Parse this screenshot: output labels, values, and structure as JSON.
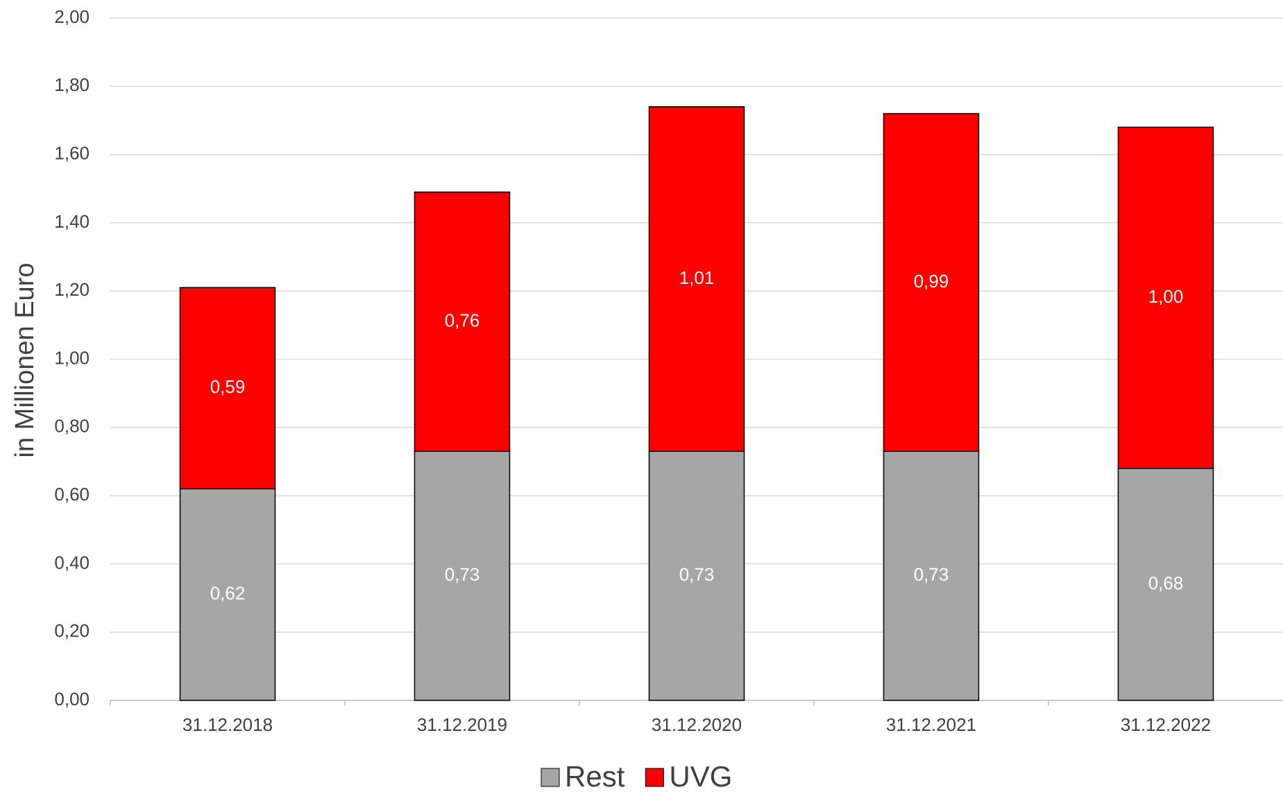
{
  "chart_data": {
    "type": "stacked_bar",
    "y_label": "in Millionen Euro",
    "categories": [
      "31.12.2018",
      "31.12.2019",
      "31.12.2020",
      "31.12.2021",
      "31.12.2022"
    ],
    "series": [
      {
        "name": "Rest",
        "color": "#a6a6a6",
        "values": [
          0.62,
          0.73,
          0.73,
          0.73,
          0.68
        ],
        "value_labels": [
          "0,62",
          "0,73",
          "0,73",
          "0,73",
          "0,68"
        ]
      },
      {
        "name": "UVG",
        "color": "#ff0000",
        "values": [
          0.59,
          0.76,
          1.01,
          0.99,
          1.0
        ],
        "value_labels": [
          "0,59",
          "0,76",
          "1,01",
          "0,99",
          "1,00"
        ]
      }
    ],
    "ylim": [
      0,
      2
    ],
    "yticks": [
      {
        "value": 0,
        "label": "0,00"
      },
      {
        "value": 0.2,
        "label": "0,20"
      },
      {
        "value": 0.4,
        "label": "0,40"
      },
      {
        "value": 0.6,
        "label": "0,60"
      },
      {
        "value": 0.8,
        "label": "0,80"
      },
      {
        "value": 1,
        "label": "1,00"
      },
      {
        "value": 1.2,
        "label": "1,20"
      },
      {
        "value": 1.4,
        "label": "1,40"
      },
      {
        "value": 1.6,
        "label": "1,60"
      },
      {
        "value": 1.8,
        "label": "1,80"
      },
      {
        "value": 2,
        "label": "2,00"
      }
    ],
    "grid": true,
    "legend": "bottom"
  }
}
